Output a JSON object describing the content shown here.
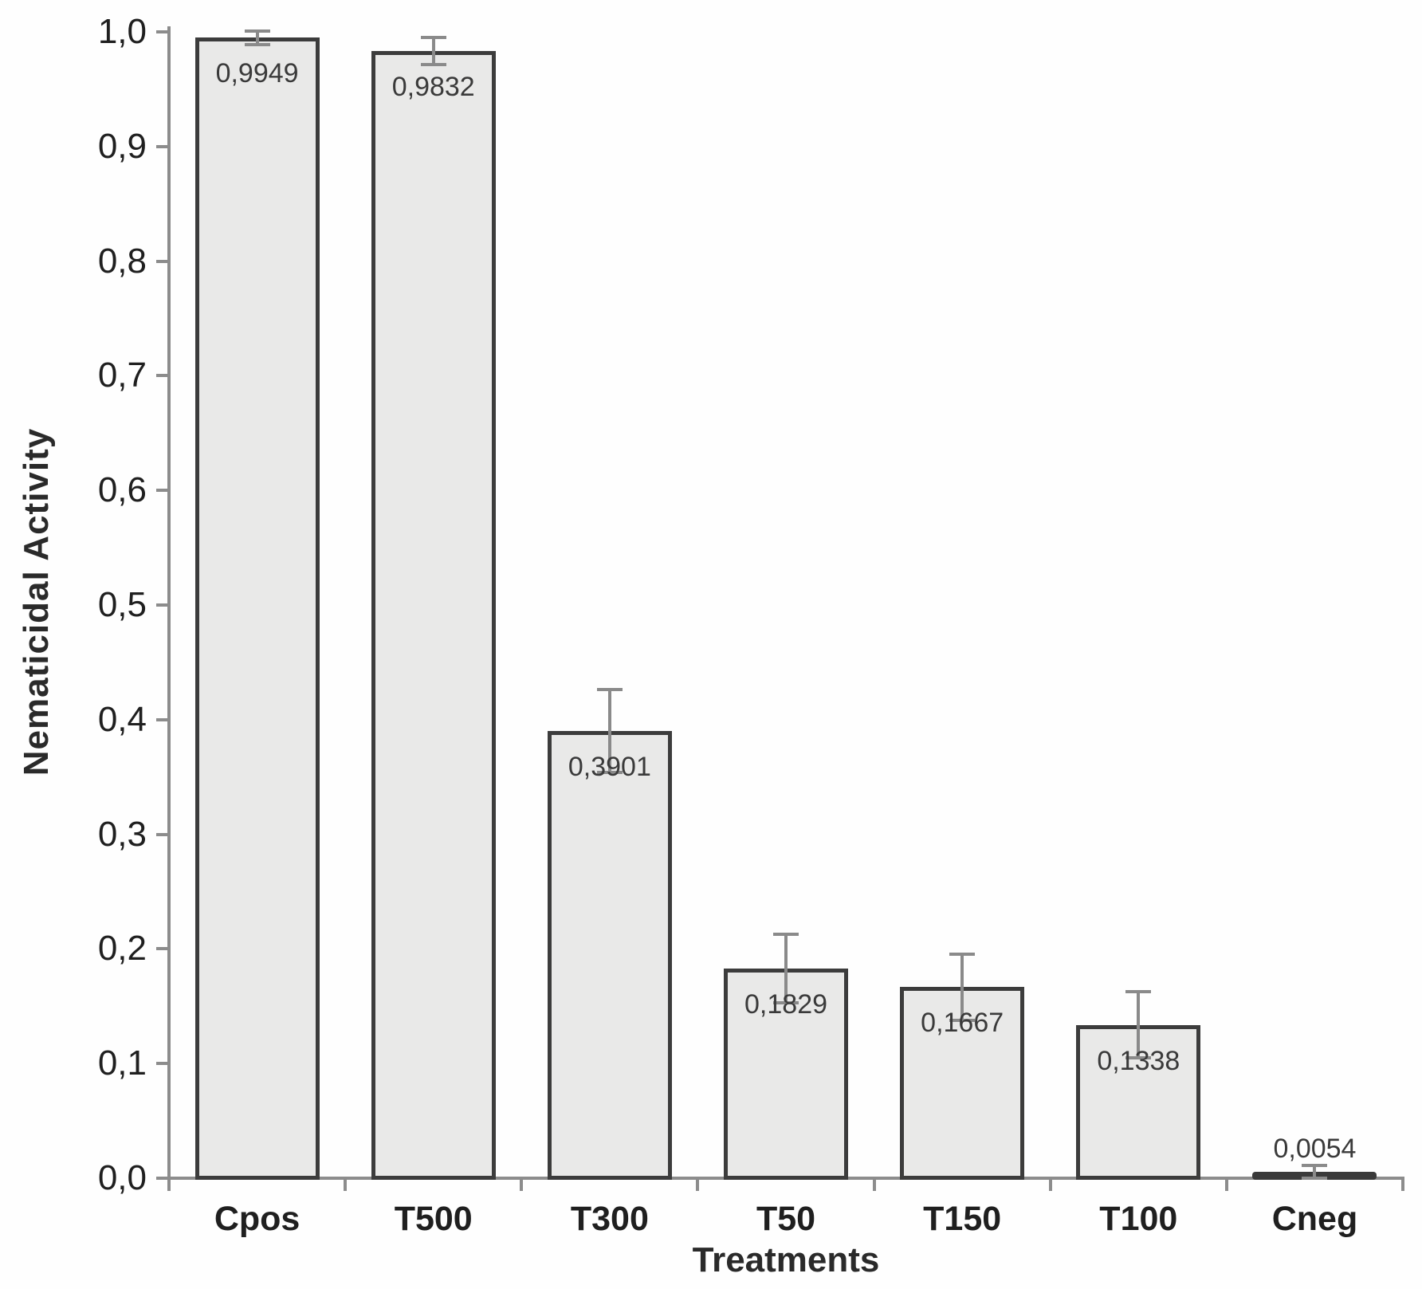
{
  "chart_data": {
    "type": "bar",
    "title": "",
    "xlabel": "Treatments",
    "ylabel": "Nematicidal Activity",
    "categories": [
      "Cpos",
      "T500",
      "T300",
      "T50",
      "T150",
      "T100",
      "Cneg"
    ],
    "values": [
      0.9949,
      0.9832,
      0.3901,
      0.1829,
      0.1667,
      0.1338,
      0.0054
    ],
    "value_labels": [
      "0,9949",
      "0,9832",
      "0,3901",
      "0,1829",
      "0,1667",
      "0,1338",
      "0,0054"
    ],
    "errors": [
      0.006,
      0.012,
      0.036,
      0.03,
      0.029,
      0.029,
      0.006
    ],
    "ylim": [
      0.0,
      1.0
    ],
    "ytick_step": 0.1,
    "ytick_labels": [
      "0,0",
      "0,1",
      "0,2",
      "0,3",
      "0,4",
      "0,5",
      "0,6",
      "0,7",
      "0,8",
      "0,9",
      "1,0"
    ],
    "grid": false,
    "legend_position": "none",
    "decimal_separator": ",",
    "colors": {
      "bar_fill": "#e9e9e8",
      "bar_border": "#3c3c3c",
      "cneg_fill": "#555555",
      "cneg_border": "#3a3a3a",
      "axis": "#8c8c8c",
      "error_bar": "#8a8a8a",
      "text": "#1f1f1f"
    }
  }
}
